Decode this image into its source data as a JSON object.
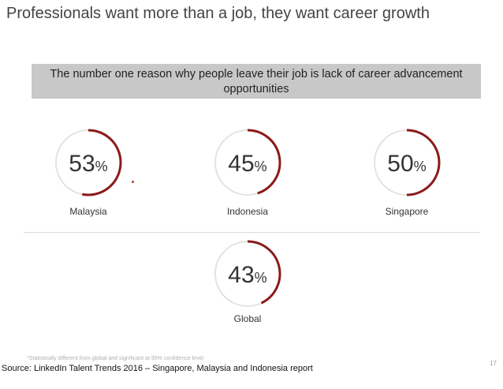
{
  "slide": {
    "title": "Professionals want more than a job, they want career growth",
    "banner": "The number one reason why people leave their job is lack of career advancement opportunities",
    "source": "Source: LinkedIn Talent Trends 2016 – Singapore, Malaysia and Indonesia report",
    "footnote": "*Statistically different from global and significant at 95% confidence level",
    "page_number": "17"
  },
  "colors": {
    "accent": "#8b1a1a",
    "track": "#e3e3e3",
    "banner_bg": "#c8c8c8"
  },
  "chart_data": {
    "type": "gauge",
    "unit": "%",
    "items": [
      {
        "label": "Malaysia",
        "value": 53,
        "flag": "*"
      },
      {
        "label": "Indonesia",
        "value": 45
      },
      {
        "label": "Singapore",
        "value": 50
      },
      {
        "label": "Global",
        "value": 43
      }
    ]
  }
}
